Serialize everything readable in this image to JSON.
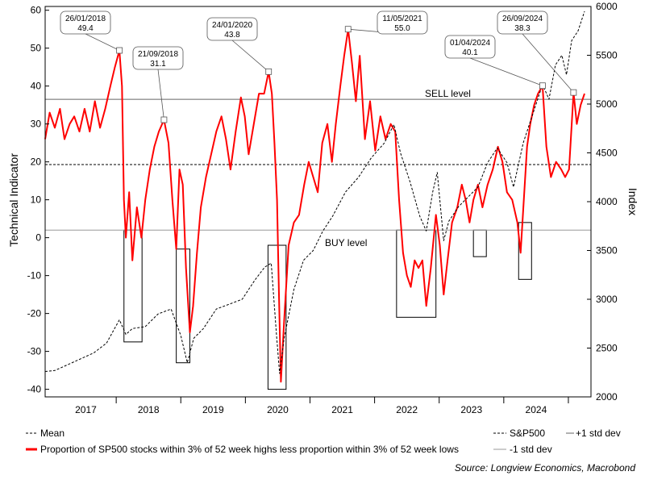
{
  "chart_data": {
    "type": "line",
    "x_ticks": [
      "2017",
      "2018",
      "2019",
      "2020",
      "2021",
      "2022",
      "2023",
      "2024"
    ],
    "y_left": {
      "label": "Technical Indicator",
      "lim": [
        -42,
        61
      ],
      "ticks": [
        60,
        50,
        40,
        30,
        20,
        10,
        0,
        -10,
        -20,
        -30,
        -40
      ]
    },
    "y_right": {
      "label": "Index",
      "lim": [
        2000,
        6000
      ],
      "ticks": [
        6000,
        5500,
        5000,
        4500,
        4000,
        3500,
        3000,
        2500,
        2000
      ]
    },
    "grid": false,
    "legend_placement": "bottom",
    "levels": {
      "sell": {
        "label": "SELL level",
        "value": 36.5
      },
      "buy": {
        "label": "BUY level",
        "value": 2
      },
      "mean": {
        "value": 19.3
      }
    },
    "series": [
      {
        "name": "Proportion of SP500 stocks within 3% of 52 week highs less proportion within 3% of 52 week lows",
        "axis": "left",
        "color": "#ff0000",
        "style": "solid",
        "points": [
          [
            2016.55,
            26
          ],
          [
            2016.62,
            33
          ],
          [
            2016.7,
            29
          ],
          [
            2016.78,
            34
          ],
          [
            2016.85,
            26
          ],
          [
            2016.93,
            30
          ],
          [
            2017.0,
            32
          ],
          [
            2017.08,
            28
          ],
          [
            2017.16,
            34
          ],
          [
            2017.24,
            28
          ],
          [
            2017.32,
            36
          ],
          [
            2017.4,
            29
          ],
          [
            2017.48,
            34
          ],
          [
            2017.56,
            40
          ],
          [
            2017.63,
            45
          ],
          [
            2017.7,
            49.4
          ],
          [
            2017.74,
            40
          ],
          [
            2017.77,
            10
          ],
          [
            2017.8,
            0
          ],
          [
            2017.85,
            12
          ],
          [
            2017.9,
            -6
          ],
          [
            2017.97,
            8
          ],
          [
            2018.04,
            0
          ],
          [
            2018.1,
            10
          ],
          [
            2018.17,
            18
          ],
          [
            2018.24,
            24
          ],
          [
            2018.31,
            28
          ],
          [
            2018.39,
            31.1
          ],
          [
            2018.46,
            25
          ],
          [
            2018.52,
            10
          ],
          [
            2018.58,
            -3
          ],
          [
            2018.63,
            18
          ],
          [
            2018.68,
            14
          ],
          [
            2018.73,
            -8
          ],
          [
            2018.79,
            -25
          ],
          [
            2018.84,
            -18
          ],
          [
            2018.9,
            -4
          ],
          [
            2018.96,
            8
          ],
          [
            2019.04,
            16
          ],
          [
            2019.12,
            22
          ],
          [
            2019.2,
            28
          ],
          [
            2019.28,
            32
          ],
          [
            2019.35,
            26
          ],
          [
            2019.42,
            18
          ],
          [
            2019.5,
            28
          ],
          [
            2019.58,
            37
          ],
          [
            2019.64,
            32
          ],
          [
            2019.7,
            22
          ],
          [
            2019.78,
            30
          ],
          [
            2019.86,
            38
          ],
          [
            2019.94,
            38
          ],
          [
            2020.01,
            43.8
          ],
          [
            2020.06,
            38
          ],
          [
            2020.1,
            25
          ],
          [
            2020.14,
            10
          ],
          [
            2020.17,
            -15
          ],
          [
            2020.2,
            -38
          ],
          [
            2020.25,
            -22
          ],
          [
            2020.32,
            -2
          ],
          [
            2020.4,
            4
          ],
          [
            2020.48,
            6
          ],
          [
            2020.56,
            14
          ],
          [
            2020.63,
            20
          ],
          [
            2020.7,
            16
          ],
          [
            2020.77,
            12
          ],
          [
            2020.84,
            25
          ],
          [
            2020.92,
            30
          ],
          [
            2020.99,
            20
          ],
          [
            2021.05,
            30
          ],
          [
            2021.12,
            40
          ],
          [
            2021.18,
            48
          ],
          [
            2021.24,
            55
          ],
          [
            2021.3,
            46
          ],
          [
            2021.36,
            36
          ],
          [
            2021.42,
            48
          ],
          [
            2021.5,
            26
          ],
          [
            2021.58,
            36
          ],
          [
            2021.66,
            23
          ],
          [
            2021.74,
            32
          ],
          [
            2021.82,
            26
          ],
          [
            2021.9,
            30
          ],
          [
            2021.97,
            28
          ],
          [
            2022.03,
            10
          ],
          [
            2022.09,
            -4
          ],
          [
            2022.15,
            -10
          ],
          [
            2022.21,
            -13
          ],
          [
            2022.27,
            -6
          ],
          [
            2022.33,
            -8
          ],
          [
            2022.39,
            -6
          ],
          [
            2022.45,
            -18
          ],
          [
            2022.52,
            -8
          ],
          [
            2022.6,
            6
          ],
          [
            2022.66,
            -2
          ],
          [
            2022.72,
            -15
          ],
          [
            2022.78,
            -6
          ],
          [
            2022.85,
            4
          ],
          [
            2022.93,
            8
          ],
          [
            2023.0,
            14
          ],
          [
            2023.06,
            10
          ],
          [
            2023.12,
            4
          ],
          [
            2023.18,
            10
          ],
          [
            2023.25,
            14
          ],
          [
            2023.32,
            8
          ],
          [
            2023.4,
            14
          ],
          [
            2023.48,
            18
          ],
          [
            2023.56,
            24
          ],
          [
            2023.63,
            20
          ],
          [
            2023.7,
            12
          ],
          [
            2023.78,
            10
          ],
          [
            2023.86,
            4
          ],
          [
            2023.91,
            -4
          ],
          [
            2023.96,
            10
          ],
          [
            2024.01,
            24
          ],
          [
            2024.06,
            30
          ],
          [
            2024.12,
            35
          ],
          [
            2024.18,
            38
          ],
          [
            2024.25,
            40.1
          ],
          [
            2024.31,
            24
          ],
          [
            2024.38,
            16
          ],
          [
            2024.46,
            20
          ],
          [
            2024.54,
            18
          ],
          [
            2024.6,
            16
          ],
          [
            2024.66,
            18
          ],
          [
            2024.73,
            38.3
          ],
          [
            2024.78,
            30
          ],
          [
            2024.84,
            35
          ],
          [
            2024.9,
            38
          ]
        ]
      },
      {
        "name": "S&P500",
        "axis": "right",
        "color": "#000000",
        "style": "dashed",
        "points": [
          [
            2016.55,
            2260
          ],
          [
            2016.7,
            2270
          ],
          [
            2016.9,
            2330
          ],
          [
            2017.1,
            2390
          ],
          [
            2017.3,
            2450
          ],
          [
            2017.5,
            2550
          ],
          [
            2017.7,
            2790
          ],
          [
            2017.8,
            2640
          ],
          [
            2017.9,
            2700
          ],
          [
            2018.1,
            2720
          ],
          [
            2018.3,
            2850
          ],
          [
            2018.5,
            2900
          ],
          [
            2018.65,
            2630
          ],
          [
            2018.75,
            2350
          ],
          [
            2018.85,
            2600
          ],
          [
            2019.0,
            2700
          ],
          [
            2019.2,
            2900
          ],
          [
            2019.4,
            2950
          ],
          [
            2019.6,
            3000
          ],
          [
            2019.8,
            3200
          ],
          [
            2019.95,
            3330
          ],
          [
            2020.05,
            3370
          ],
          [
            2020.13,
            2650
          ],
          [
            2020.18,
            2240
          ],
          [
            2020.25,
            2600
          ],
          [
            2020.4,
            3100
          ],
          [
            2020.55,
            3400
          ],
          [
            2020.7,
            3500
          ],
          [
            2020.85,
            3700
          ],
          [
            2021.0,
            3850
          ],
          [
            2021.2,
            4100
          ],
          [
            2021.4,
            4250
          ],
          [
            2021.6,
            4450
          ],
          [
            2021.8,
            4600
          ],
          [
            2021.95,
            4790
          ],
          [
            2022.05,
            4500
          ],
          [
            2022.2,
            4200
          ],
          [
            2022.35,
            3850
          ],
          [
            2022.45,
            3700
          ],
          [
            2022.55,
            4100
          ],
          [
            2022.62,
            4300
          ],
          [
            2022.72,
            3600
          ],
          [
            2022.8,
            3800
          ],
          [
            2022.95,
            3950
          ],
          [
            2023.1,
            4050
          ],
          [
            2023.25,
            4150
          ],
          [
            2023.4,
            4400
          ],
          [
            2023.55,
            4550
          ],
          [
            2023.7,
            4400
          ],
          [
            2023.8,
            4150
          ],
          [
            2023.95,
            4600
          ],
          [
            2024.1,
            4900
          ],
          [
            2024.25,
            5200
          ],
          [
            2024.35,
            5050
          ],
          [
            2024.45,
            5400
          ],
          [
            2024.55,
            5500
          ],
          [
            2024.62,
            5300
          ],
          [
            2024.7,
            5650
          ],
          [
            2024.8,
            5750
          ],
          [
            2024.9,
            5950
          ]
        ]
      }
    ],
    "annotations": [
      {
        "date": "26/01/2018",
        "value": "49.4",
        "x": 2017.7,
        "y": 49.4
      },
      {
        "date": "21/09/2018",
        "value": "31.1",
        "x": 2018.39,
        "y": 31.1
      },
      {
        "date": "24/01/2020",
        "value": "43.8",
        "x": 2020.01,
        "y": 43.8
      },
      {
        "date": "11/05/2021",
        "value": "55.0",
        "x": 2021.24,
        "y": 55.0
      },
      {
        "date": "01/04/2024",
        "value": "40.1",
        "x": 2024.25,
        "y": 40.1
      },
      {
        "date": "26/09/2024",
        "value": "38.3",
        "x": 2024.73,
        "y": 38.3
      }
    ],
    "buy_windows": [
      {
        "x0": 2017.77,
        "x1": 2018.05,
        "y0": -27.5,
        "y1": 2
      },
      {
        "x0": 2018.58,
        "x1": 2018.79,
        "y0": -33,
        "y1": -3
      },
      {
        "x0": 2020.0,
        "x1": 2020.28,
        "y0": -40,
        "y1": -2
      },
      {
        "x0": 2021.99,
        "x1": 2022.6,
        "y0": -21,
        "y1": 2
      },
      {
        "x0": 2023.18,
        "x1": 2023.38,
        "y0": -5,
        "y1": 2
      },
      {
        "x0": 2023.88,
        "x1": 2024.08,
        "y0": -11,
        "y1": 4
      }
    ]
  },
  "legend": {
    "mean": "Mean",
    "sp500": "S&P500",
    "plus_std": "+1 std dev",
    "minus_std": "-1 std dev",
    "indicator": "Proportion of SP500 stocks within 3% of 52 week highs less proportion within 3% of 52 week lows"
  },
  "source": "Source: Longview Economics, Macrobond"
}
